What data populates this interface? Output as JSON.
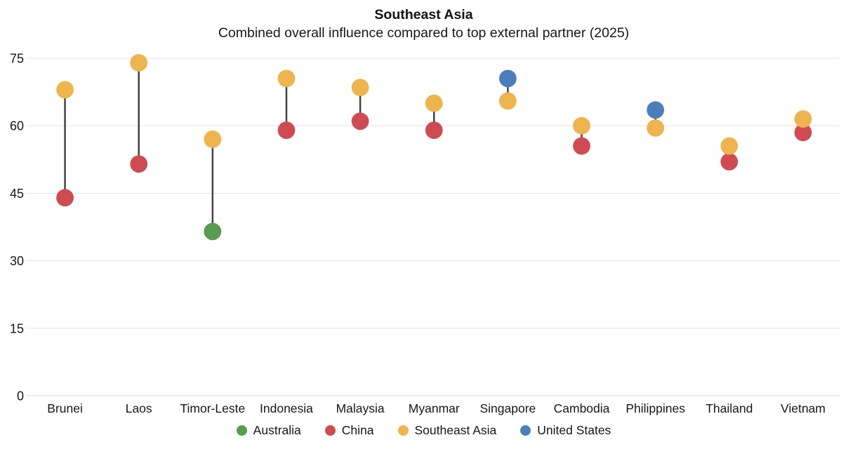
{
  "chart_data": {
    "type": "scatter",
    "subtype": "dumbbell",
    "title": "Southeast Asia",
    "subtitle": "Combined overall influence compared to top external partner (2025)",
    "ylim": [
      0,
      75
    ],
    "y_ticks": [
      0,
      15,
      30,
      45,
      60,
      75
    ],
    "grid": "horizontal",
    "legend_position": "bottom",
    "categories": [
      "Brunei",
      "Laos",
      "Timor-Leste",
      "Indonesia",
      "Malaysia",
      "Myanmar",
      "Singapore",
      "Cambodia",
      "Philippines",
      "Thailand",
      "Vietnam"
    ],
    "series_colors": {
      "Australia": "#5a9b52",
      "China": "#cf4b52",
      "Southeast Asia": "#eeb44e",
      "United States": "#4c7ebd"
    },
    "connector_color": "#3e444b",
    "items": [
      {
        "country": "Brunei",
        "southeast_asia_value": 68,
        "partner": "China",
        "partner_value": 44
      },
      {
        "country": "Laos",
        "southeast_asia_value": 74,
        "partner": "China",
        "partner_value": 51.5
      },
      {
        "country": "Timor-Leste",
        "southeast_asia_value": 57,
        "partner": "Australia",
        "partner_value": 36.5
      },
      {
        "country": "Indonesia",
        "southeast_asia_value": 70.5,
        "partner": "China",
        "partner_value": 59
      },
      {
        "country": "Malaysia",
        "southeast_asia_value": 68.5,
        "partner": "China",
        "partner_value": 61
      },
      {
        "country": "Myanmar",
        "southeast_asia_value": 65,
        "partner": "China",
        "partner_value": 59
      },
      {
        "country": "Singapore",
        "southeast_asia_value": 65.5,
        "partner": "United States",
        "partner_value": 70.5
      },
      {
        "country": "Cambodia",
        "southeast_asia_value": 60,
        "partner": "China",
        "partner_value": 55.5
      },
      {
        "country": "Philippines",
        "southeast_asia_value": 59.5,
        "partner": "United States",
        "partner_value": 63.5
      },
      {
        "country": "Thailand",
        "southeast_asia_value": 55.5,
        "partner": "China",
        "partner_value": 52
      },
      {
        "country": "Vietnam",
        "southeast_asia_value": 61.5,
        "partner": "China",
        "partner_value": 58.5
      }
    ],
    "legend": [
      {
        "label": "Australia",
        "color": "#5a9b52"
      },
      {
        "label": "China",
        "color": "#cf4b52"
      },
      {
        "label": "Southeast Asia",
        "color": "#eeb44e"
      },
      {
        "label": "United States",
        "color": "#4c7ebd"
      }
    ]
  }
}
